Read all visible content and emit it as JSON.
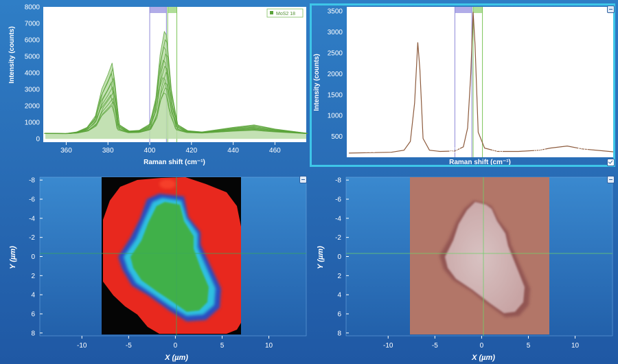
{
  "colors": {
    "background": "#2a6fb8",
    "spectrum_fill": "#b9dca6",
    "spectrum_line": "#5aa33a",
    "single_spectrum_line": "#8c5a3c",
    "band1": "#a8a3e6",
    "band2": "#a6d98c",
    "selection_frame": "#3ec6e8",
    "map_outside": "#e8281e",
    "map_crystal": "#3fb04a",
    "map_edge": "#2a4ec0",
    "map_background": "#050505",
    "optical_substrate": "#b27668",
    "optical_flake": "#d6b8b8"
  },
  "left_spectrum": {
    "ylabel": "Intensity (counts)",
    "xlabel": "Raman shift (cm⁻¹)",
    "legend_label": "MoS2 18",
    "xticks": [
      "360",
      "380",
      "400",
      "420",
      "440",
      "460"
    ],
    "yticks": [
      "0",
      "1000",
      "2000",
      "3000",
      "4000",
      "5000",
      "6000",
      "7000",
      "8000"
    ],
    "minimize_icon": "minimize-icon"
  },
  "right_spectrum": {
    "ylabel": "Intensity (counts)",
    "xlabel": "Raman shift (cm⁻¹)",
    "xticks": [
      "360",
      "380",
      "400",
      "420",
      "440",
      "460"
    ],
    "yticks": [
      "500",
      "1000",
      "1500",
      "2000",
      "2500",
      "3000",
      "3500"
    ],
    "minimize_icon": "minimize-icon",
    "check_icon": "checkbox-icon"
  },
  "left_map": {
    "ylabel": "Y (µm)",
    "xlabel": "X (µm)",
    "xticks": [
      "-10",
      "-5",
      "0",
      "5",
      "10"
    ],
    "yticks": [
      "-8",
      "-6",
      "-4",
      "-2",
      "0",
      "2",
      "4",
      "6",
      "8"
    ]
  },
  "right_map": {
    "ylabel": "Y (µm)",
    "xlabel": "X (µm)",
    "xticks": [
      "-10",
      "-5",
      "0",
      "5",
      "10"
    ],
    "yticks": [
      "-8",
      "-6",
      "-4",
      "-2",
      "0",
      "2",
      "4",
      "6",
      "8"
    ]
  },
  "chart_data": [
    {
      "type": "line",
      "ylabel": "Intensity (counts)",
      "xlabel": "Raman shift (cm⁻¹)",
      "xlim": [
        349,
        475
      ],
      "ylim": [
        -200,
        8000
      ],
      "legend": "top-right",
      "series": [
        {
          "name": "MoS2 18",
          "x": [
            350,
            360,
            365,
            370,
            374,
            377,
            380,
            382,
            383,
            385,
            390,
            395,
            400,
            403,
            405,
            407,
            408,
            410,
            413,
            418,
            425,
            440,
            450,
            460,
            475
          ],
          "values": [
            350,
            330,
            420,
            700,
            1400,
            3000,
            3900,
            4600,
            3600,
            900,
            480,
            520,
            900,
            2500,
            5100,
            6500,
            6300,
            3200,
            900,
            500,
            420,
            700,
            850,
            600,
            350
          ]
        }
      ]
    },
    {
      "type": "line",
      "ylabel": "Intensity (counts)",
      "xlabel": "Raman shift (cm⁻¹)",
      "xlim": [
        349,
        475
      ],
      "ylim": [
        0,
        3600
      ],
      "series": [
        {
          "x": [
            350,
            360,
            370,
            376,
            379,
            381,
            382.5,
            383.5,
            385,
            388,
            393,
            400,
            404,
            406,
            407.5,
            408.6,
            409.5,
            411,
            414,
            420,
            430,
            440,
            445,
            453,
            460,
            475
          ],
          "values": [
            100,
            110,
            120,
            170,
            380,
            1300,
            2750,
            2100,
            450,
            170,
            140,
            150,
            250,
            700,
            2000,
            3480,
            2700,
            600,
            220,
            140,
            140,
            170,
            220,
            270,
            200,
            130
          ]
        }
      ]
    }
  ]
}
